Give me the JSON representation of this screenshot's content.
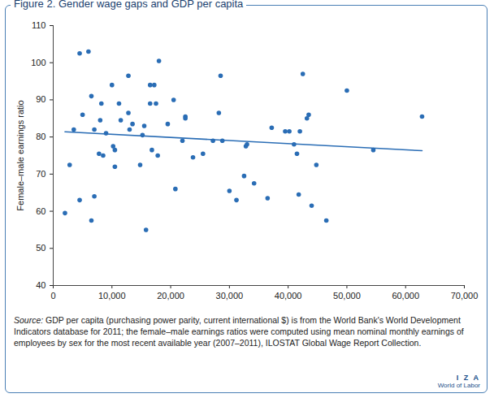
{
  "chart_data": {
    "type": "scatter",
    "title": "Figure 2. Gender wage gaps and GDP per capita",
    "ylabel": "Female–male earnings ratio",
    "xlim": [
      0,
      70000
    ],
    "xticks": [
      0,
      {
        "value": 10000,
        "label": "10,000"
      },
      {
        "value": 20000,
        "label": "20,000"
      },
      {
        "value": 30000,
        "label": "30,000"
      },
      {
        "value": 40000,
        "label": "40,000"
      },
      {
        "value": 50000,
        "label": "50,000"
      },
      {
        "value": 60000,
        "label": "60,000"
      },
      {
        "value": 70000,
        "label": "70,000"
      }
    ],
    "ylim": [
      40,
      110
    ],
    "yticks": [
      40,
      50,
      60,
      70,
      80,
      90,
      100,
      110
    ],
    "grid": false,
    "series": [
      {
        "type": "scatter",
        "color": "#2a6db5",
        "marker": "circle",
        "x": [
          2000,
          2800,
          3500,
          4500,
          4500,
          5000,
          6000,
          6500,
          6500,
          7000,
          7000,
          7800,
          8000,
          8200,
          8500,
          9000,
          10000,
          10200,
          10500,
          10500,
          11200,
          11500,
          12800,
          12800,
          13000,
          13500,
          14800,
          15200,
          15500,
          15800,
          16500,
          16500,
          16800,
          17200,
          17500,
          17800,
          18000,
          19500,
          20500,
          20800,
          22000,
          22500,
          22500,
          23800,
          25500,
          27200,
          28200,
          28500,
          28800,
          30000,
          31200,
          32500,
          32800,
          33000,
          34200,
          36500,
          37200,
          39500,
          40200,
          41000,
          41500,
          41800,
          42000,
          42500,
          43200,
          43500,
          44000,
          44800,
          46500,
          50000,
          54500,
          62800
        ],
        "values": [
          59.5,
          72.5,
          82,
          102.5,
          63,
          86,
          103,
          57.5,
          91,
          82,
          64,
          75.5,
          84.5,
          89,
          75,
          81,
          94,
          77.5,
          72,
          76.5,
          89,
          84.5,
          96.5,
          86.5,
          82,
          83.5,
          72.5,
          80.5,
          83,
          55,
          89,
          94,
          76.5,
          94,
          89,
          75,
          100.5,
          83.5,
          90,
          66,
          79,
          85.5,
          85,
          74.5,
          75.5,
          79,
          86.5,
          96.5,
          79,
          65.5,
          63,
          69.5,
          77.5,
          78,
          67.5,
          63.5,
          82.5,
          81.5,
          81.5,
          78,
          75.5,
          64.5,
          81.5,
          97,
          85,
          86,
          61.5,
          72.5,
          57.5,
          92.5,
          76.5,
          85.5
        ]
      },
      {
        "type": "line",
        "color": "#2a6db5",
        "line_style": "solid",
        "x": [
          2000,
          62800
        ],
        "values": [
          81.4,
          76.3
        ]
      }
    ],
    "source_label": "Source:",
    "source": "GDP per capita (purchasing power parity, current international $) is from the World Bank's World Development Indicators database for 2011; the female–male earnings ratios were computed using mean nominal monthly earnings of employees by sex for the most recent available year (2007–2011), ILOSTAT Global Wage Report Collection.",
    "logo": [
      "I Z A",
      "World of Labor"
    ]
  }
}
